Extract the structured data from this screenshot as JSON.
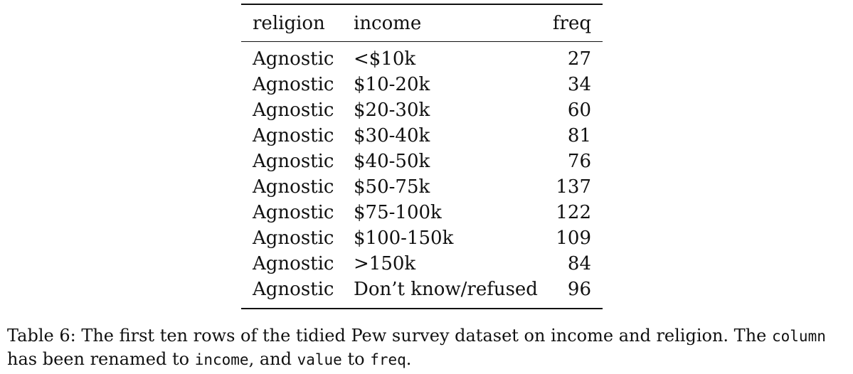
{
  "table": {
    "headers": {
      "religion": "religion",
      "income": "income",
      "freq": "freq"
    },
    "rows": [
      {
        "religion": "Agnostic",
        "income": "<$10k",
        "freq": "27"
      },
      {
        "religion": "Agnostic",
        "income": "$10-20k",
        "freq": "34"
      },
      {
        "religion": "Agnostic",
        "income": "$20-30k",
        "freq": "60"
      },
      {
        "religion": "Agnostic",
        "income": "$30-40k",
        "freq": "81"
      },
      {
        "religion": "Agnostic",
        "income": "$40-50k",
        "freq": "76"
      },
      {
        "religion": "Agnostic",
        "income": "$50-75k",
        "freq": "137"
      },
      {
        "religion": "Agnostic",
        "income": "$75-100k",
        "freq": "122"
      },
      {
        "religion": "Agnostic",
        "income": "$100-150k",
        "freq": "109"
      },
      {
        "religion": "Agnostic",
        "income": ">150k",
        "freq": "84"
      },
      {
        "religion": "Agnostic",
        "income": "Don’t know/refused",
        "freq": "96"
      }
    ]
  },
  "caption": {
    "label": "Table 6:",
    "text_1": "The first ten rows of the tidied Pew survey dataset on income and religion. The",
    "code_column": "column",
    "text_2": "has been renamed to",
    "code_income": "income",
    "text_3": ", and",
    "code_value": "value",
    "text_4": "to",
    "code_freq": "freq",
    "text_5": "."
  }
}
